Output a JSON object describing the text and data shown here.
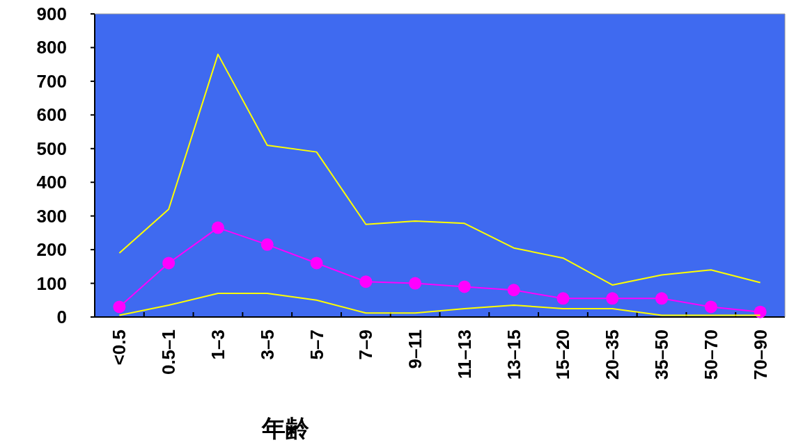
{
  "chart_data": {
    "type": "line",
    "xlabel": "年齢",
    "categories": [
      "<0.5",
      "0.5–1",
      "1–3",
      "3–5",
      "5–7",
      "7–9",
      "9–11",
      "11–13",
      "13–15",
      "15–20",
      "20–35",
      "35–50",
      "50–70",
      "70–90"
    ],
    "series": [
      {
        "color": "#ffff00",
        "marker": "none",
        "values": [
          190,
          320,
          780,
          510,
          490,
          275,
          285,
          278,
          205,
          175,
          95,
          125,
          140,
          102
        ]
      },
      {
        "color": "#ff00ff",
        "marker": "circle",
        "values": [
          30,
          160,
          265,
          215,
          160,
          105,
          100,
          90,
          80,
          55,
          55,
          55,
          30,
          15
        ]
      },
      {
        "color": "#ffff00",
        "marker": "none",
        "values": [
          5,
          35,
          70,
          70,
          50,
          12,
          12,
          25,
          35,
          25,
          25,
          5,
          5,
          5
        ]
      }
    ],
    "ylim": [
      0,
      900
    ],
    "yticks": [
      0,
      100,
      200,
      300,
      400,
      500,
      600,
      700,
      800,
      900
    ],
    "grid": false
  }
}
